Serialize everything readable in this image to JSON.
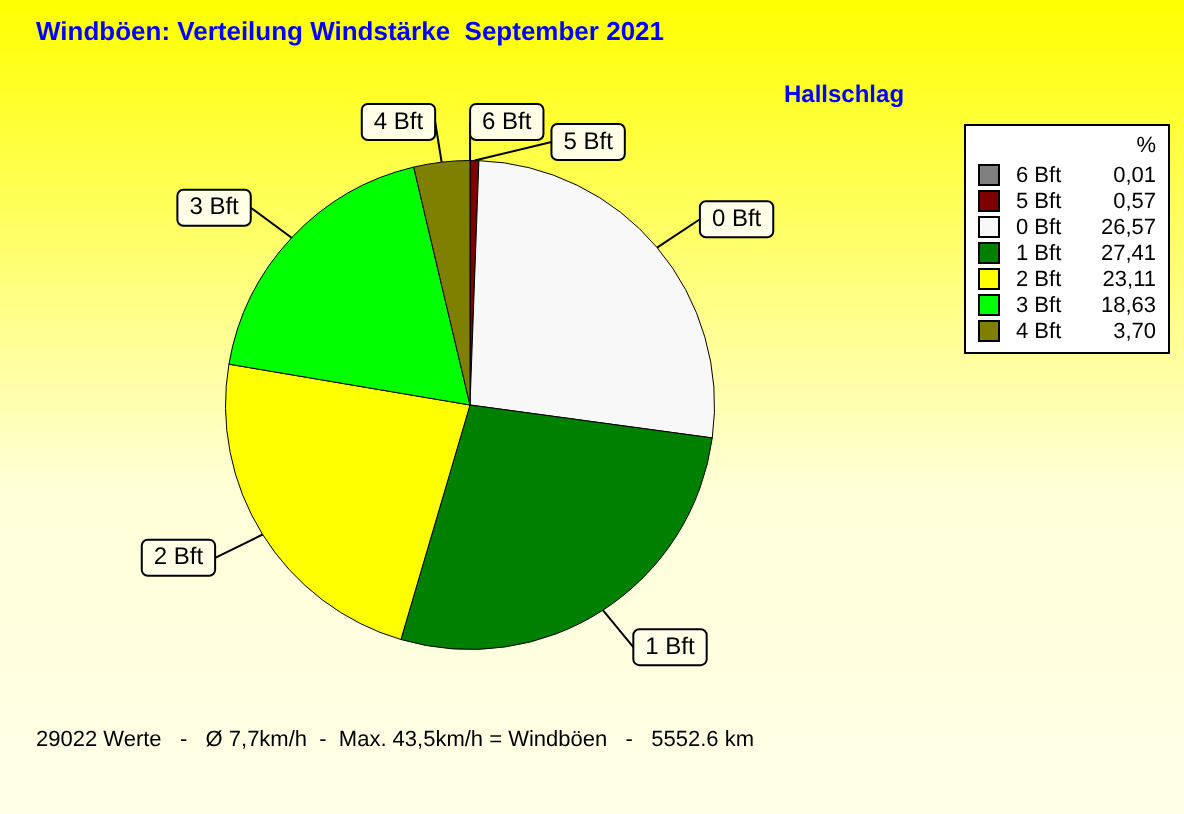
{
  "chart_data": {
    "type": "pie",
    "title": "Windböen: Verteilung Windstärke  September 2021",
    "subtitle": "Hallschlag",
    "categories": [
      "6 Bft",
      "5 Bft",
      "0 Bft",
      "1 Bft",
      "2 Bft",
      "3 Bft",
      "4 Bft"
    ],
    "values": [
      0.01,
      0.57,
      26.57,
      27.41,
      23.11,
      18.63,
      3.7
    ],
    "value_labels": [
      "0,01",
      "0,57",
      "26,57",
      "27,41",
      "23,11",
      "18,63",
      "3,70"
    ],
    "colors": [
      "#808080",
      "#800000",
      "#f8f8f8",
      "#008000",
      "#ffff00",
      "#00ff00",
      "#808000"
    ],
    "legend": "right",
    "legend_title": "%",
    "annotations": [
      "29022 Werte   -   Ø 7,7km/h  -  Max. 43,5km/h = Windböen   -   5552.6 km"
    ]
  }
}
